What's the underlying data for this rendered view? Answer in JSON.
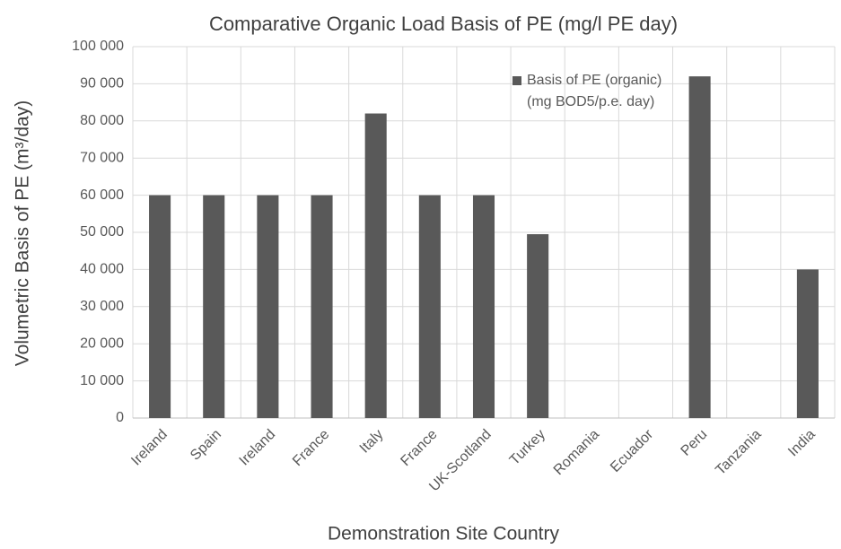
{
  "chart_data": {
    "type": "bar",
    "title": "Comparative Organic Load Basis of PE (mg/l PE day)",
    "x_label": "Demonstration Site Country",
    "y_label": "Volumetric Basis of PE (m³/day)",
    "categories": [
      "Ireland",
      "Spain",
      "Ireland",
      "France",
      "Italy",
      "France",
      "UK-Scotland",
      "Turkey",
      "Romania",
      "Ecuador",
      "Peru",
      "Tanzania",
      "India"
    ],
    "series": [
      {
        "name": "Basis of PE (organic) (mg BOD5/p.e. day)",
        "color": "#595959",
        "values": [
          60000,
          60000,
          60000,
          60000,
          82000,
          60000,
          60000,
          49500,
          null,
          null,
          92000,
          null,
          40000
        ]
      }
    ],
    "ylim": [
      0,
      100000
    ],
    "yticks": [
      0,
      {
        "value": 10000,
        "label": "10 000"
      },
      {
        "value": 20000,
        "label": "20 000"
      },
      {
        "value": 30000,
        "label": "30 000"
      },
      {
        "value": 40000,
        "label": "40 000"
      },
      {
        "value": 50000,
        "label": "50 000"
      },
      {
        "value": 60000,
        "label": "60 000"
      },
      {
        "value": 70000,
        "label": "70 000"
      },
      {
        "value": 80000,
        "label": "80 000"
      },
      {
        "value": 90000,
        "label": "90 000"
      },
      {
        "value": 100000,
        "label": "100 000"
      }
    ],
    "grid": true
  }
}
